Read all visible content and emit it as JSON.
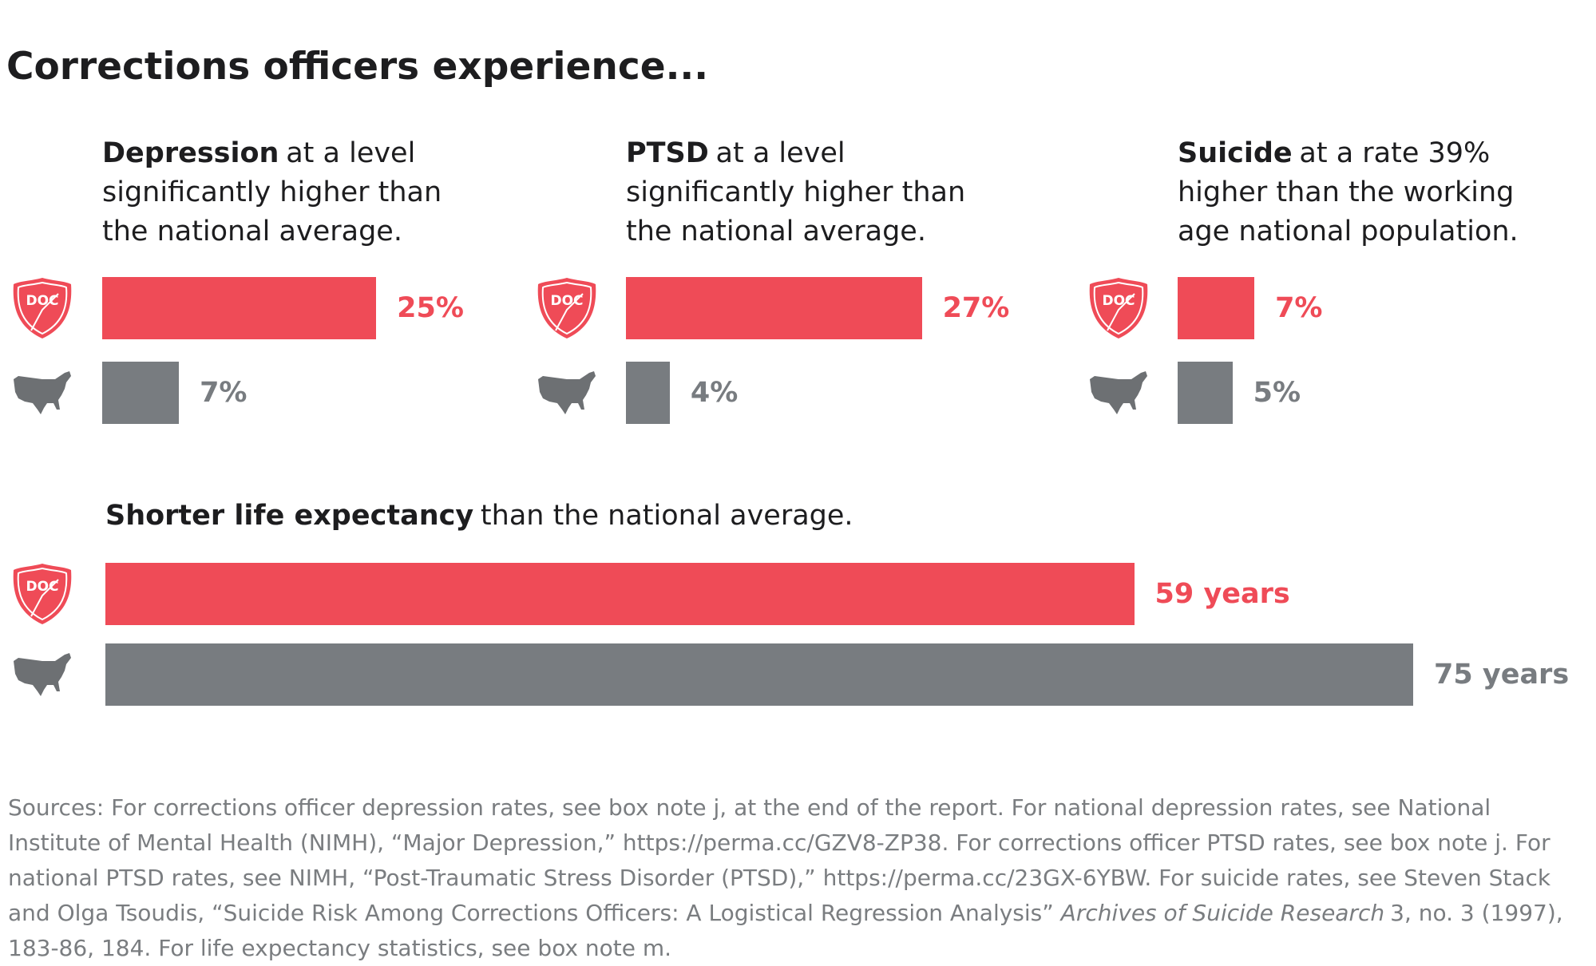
{
  "title": "Corrections officers experience...",
  "icon_label": "DOC",
  "chart_data": [
    {
      "type": "bar",
      "orientation": "horizontal",
      "title_bold": "Depression",
      "title": "at a level significantly higher than the national average.",
      "values": [
        25,
        7
      ],
      "value_labels": [
        "25%",
        "7%"
      ],
      "colors": [
        "#ef4b57",
        "#787c80"
      ],
      "xlim": [
        0,
        40
      ]
    },
    {
      "type": "bar",
      "orientation": "horizontal",
      "title_bold": "PTSD",
      "title": "at a level significantly higher than the national average.",
      "values": [
        27,
        4
      ],
      "value_labels": [
        "27%",
        "4%"
      ],
      "colors": [
        "#ef4b57",
        "#787c80"
      ],
      "xlim": [
        0,
        40
      ]
    },
    {
      "type": "bar",
      "orientation": "horizontal",
      "title_bold": "Suicide",
      "title": "at a rate 39% higher than the working age national population.",
      "values": [
        7,
        5
      ],
      "value_labels": [
        "7%",
        "5%"
      ],
      "colors": [
        "#ef4b57",
        "#787c80"
      ],
      "xlim": [
        0,
        40
      ]
    },
    {
      "type": "bar",
      "orientation": "horizontal",
      "title_bold": "Shorter life expectancy",
      "title": "than the national average.",
      "values": [
        59,
        75
      ],
      "value_labels": [
        "59 years",
        "75 years"
      ],
      "colors": [
        "#ef4b57",
        "#787c80"
      ],
      "xlim": [
        0,
        75
      ]
    }
  ],
  "sources": {
    "before": "Sources: For corrections officer depression rates, see box note j, at the end of the report. For national depression rates, see National Institute of Mental Health (NIMH), “Major Depression,” https://perma.cc/GZV8-ZP38. For corrections officer PTSD rates, see box note j. For national PTSD rates, see NIMH, “Post-Traumatic Stress Disorder (PTSD),” https://perma.cc/23GX-6YBW. For suicide rates, see Steven Stack and Olga Tsoudis, “Suicide Risk Among Corrections Officers: A Logistical Regression Analysis”",
    "italic": "Archives of Suicide Research",
    "after": "3, no. 3 (1997), 183-86, 184. For life expectancy statistics, see box note m."
  }
}
